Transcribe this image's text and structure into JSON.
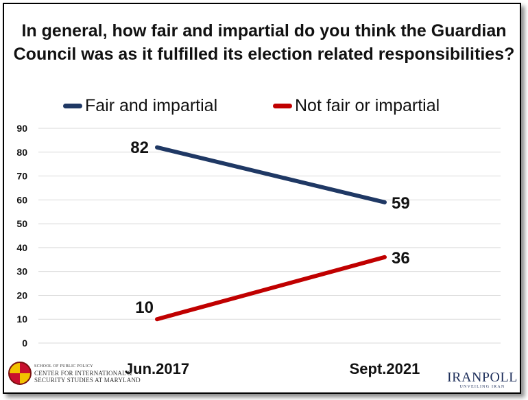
{
  "chart_data": {
    "type": "line",
    "title": "In general, how fair and impartial do you think the Guardian Council was as it fulfilled its election related responsibilities?",
    "categories": [
      "Jun.2017",
      "Sept.2021"
    ],
    "series": [
      {
        "name": "Fair and impartial",
        "values": [
          82,
          59
        ],
        "color": "#1f3864"
      },
      {
        "name": "Not fair or impartial",
        "values": [
          10,
          36
        ],
        "color": "#c00000"
      }
    ],
    "ylim": [
      0,
      90
    ],
    "yticks": [
      0,
      10,
      20,
      30,
      40,
      50,
      60,
      70,
      80,
      90
    ],
    "grid": true,
    "legend": "top"
  },
  "logos": {
    "left_line1": "SCHOOL OF PUBLIC POLICY",
    "left_line2": "CENTER FOR INTERNATIONAL &",
    "left_line3": "SECURITY STUDIES AT MARYLAND",
    "right_brand": "IRANPOLL",
    "right_tag": "UNVEILING IRAN"
  }
}
